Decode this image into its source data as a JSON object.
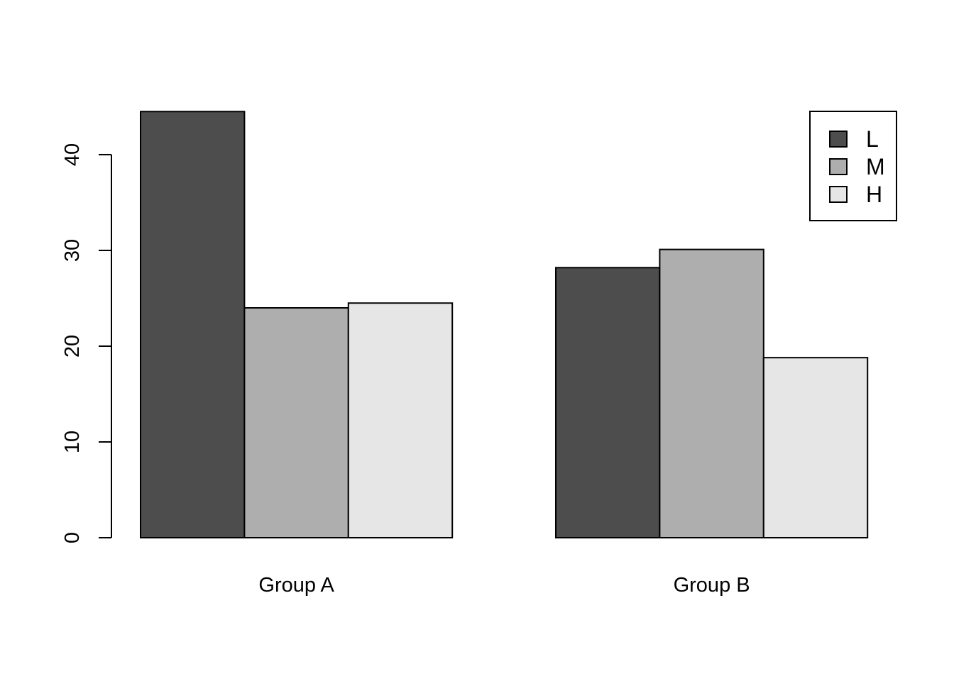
{
  "chart_data": {
    "type": "bar",
    "categories": [
      "Group A",
      "Group B"
    ],
    "series": [
      {
        "name": "L",
        "values": [
          44.5,
          28.2
        ]
      },
      {
        "name": "M",
        "values": [
          24.0,
          30.1
        ]
      },
      {
        "name": "H",
        "values": [
          24.5,
          18.8
        ]
      }
    ],
    "y_ticks": [
      "0",
      "10",
      "20",
      "30",
      "40"
    ],
    "ylim": [
      0,
      44.5
    ],
    "title": "",
    "xlabel": "",
    "ylabel": "",
    "grid": false,
    "legend_position": "top-right",
    "colors": {
      "L": "#4d4d4d",
      "M": "#aeaeae",
      "H": "#e6e6e6"
    }
  }
}
